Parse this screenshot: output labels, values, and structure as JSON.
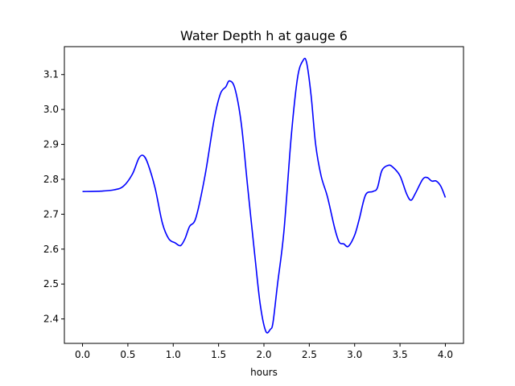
{
  "chart_data": {
    "type": "line",
    "title": "Water Depth h at gauge 6",
    "xlabel": "hours",
    "ylabel": "",
    "xlim": [
      -0.2,
      4.2
    ],
    "ylim": [
      2.33,
      3.18
    ],
    "xticks": [
      0.0,
      0.5,
      1.0,
      1.5,
      2.0,
      2.5,
      3.0,
      3.5,
      4.0
    ],
    "xtick_labels": [
      "0.0",
      "0.5",
      "1.0",
      "1.5",
      "2.0",
      "2.5",
      "3.0",
      "3.5",
      "4.0"
    ],
    "yticks": [
      2.4,
      2.5,
      2.6,
      2.7,
      2.8,
      2.9,
      3.0,
      3.1
    ],
    "ytick_labels": [
      "2.4",
      "2.5",
      "2.6",
      "2.7",
      "2.8",
      "2.9",
      "3.0",
      "3.1"
    ],
    "grid": false,
    "series": [
      {
        "color": "#0000ff",
        "x": [
          0.0,
          0.2,
          0.35,
          0.45,
          0.55,
          0.62,
          0.67,
          0.72,
          0.8,
          0.88,
          0.95,
          1.02,
          1.08,
          1.13,
          1.18,
          1.25,
          1.35,
          1.45,
          1.52,
          1.58,
          1.62,
          1.68,
          1.75,
          1.82,
          1.9,
          1.96,
          2.02,
          2.07,
          2.1,
          2.15,
          2.22,
          2.3,
          2.37,
          2.43,
          2.47,
          2.52,
          2.57,
          2.63,
          2.7,
          2.78,
          2.83,
          2.88,
          2.93,
          3.0,
          3.05,
          3.12,
          3.2,
          3.25,
          3.3,
          3.37,
          3.42,
          3.5,
          3.57,
          3.62,
          3.67,
          3.75,
          3.8,
          3.85,
          3.9,
          3.95,
          4.0
        ],
        "y": [
          2.765,
          2.766,
          2.77,
          2.78,
          2.815,
          2.86,
          2.868,
          2.845,
          2.775,
          2.675,
          2.63,
          2.618,
          2.61,
          2.63,
          2.665,
          2.69,
          2.81,
          2.97,
          3.045,
          3.065,
          3.082,
          3.06,
          2.96,
          2.78,
          2.58,
          2.44,
          2.365,
          2.37,
          2.39,
          2.5,
          2.65,
          2.92,
          3.09,
          3.14,
          3.135,
          3.04,
          2.9,
          2.81,
          2.75,
          2.66,
          2.62,
          2.615,
          2.608,
          2.64,
          2.685,
          2.755,
          2.765,
          2.775,
          2.825,
          2.84,
          2.835,
          2.81,
          2.76,
          2.74,
          2.76,
          2.8,
          2.805,
          2.795,
          2.795,
          2.78,
          2.748
        ]
      }
    ]
  }
}
